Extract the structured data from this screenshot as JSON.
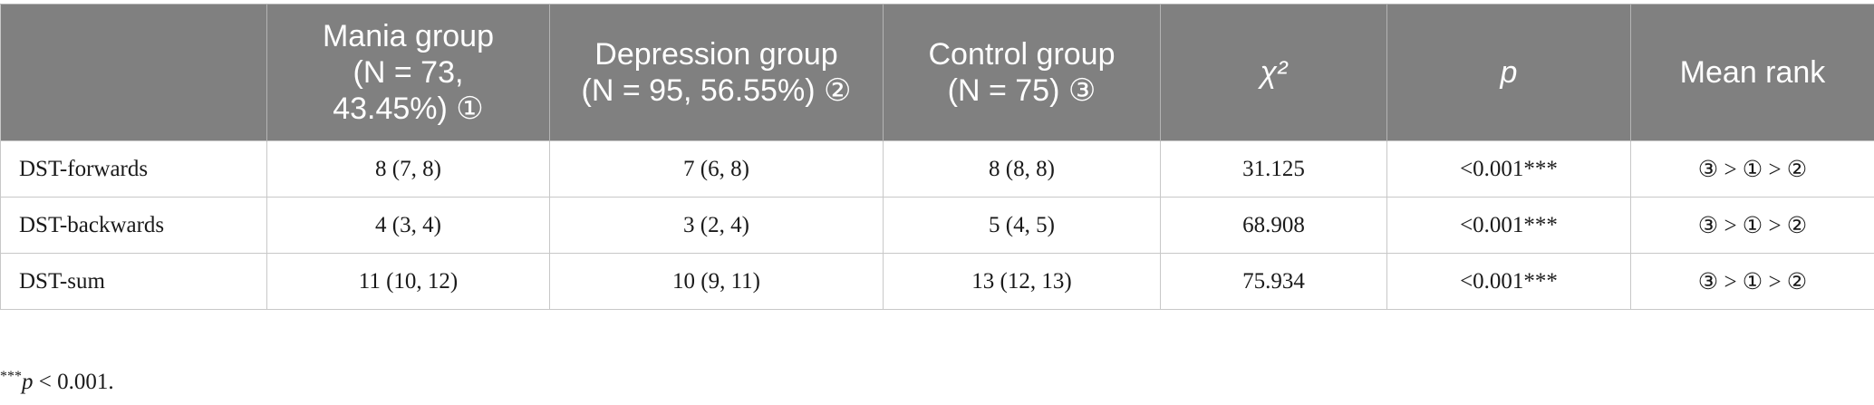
{
  "table": {
    "headers": {
      "row_label": "",
      "mania": {
        "line1": "Mania group",
        "line2": "(N = 73,",
        "line3": "43.45%) ①"
      },
      "depression": {
        "line1": "Depression group",
        "line2": "(N = 95, 56.55%) ②"
      },
      "control": {
        "line1": "Control group",
        "line2": "(N = 75) ③"
      },
      "chi2": "χ²",
      "p": "p",
      "mean_rank": "Mean rank"
    },
    "rows": [
      {
        "label": "DST-forwards",
        "mania": "8 (7, 8)",
        "depression": "7 (6, 8)",
        "control": "8 (8, 8)",
        "chi2": "31.125",
        "p": "<0.001***",
        "mean_rank": "③ > ① > ②"
      },
      {
        "label": "DST-backwards",
        "mania": "4 (3, 4)",
        "depression": "3 (2, 4)",
        "control": "5 (4, 5)",
        "chi2": "68.908",
        "p": "<0.001***",
        "mean_rank": "③ > ① > ②"
      },
      {
        "label": "DST-sum",
        "mania": "11 (10, 12)",
        "depression": "10 (9, 11)",
        "control": "13 (12, 13)",
        "chi2": "75.934",
        "p": "<0.001***",
        "mean_rank": "③ > ① > ②"
      }
    ]
  },
  "footnote": {
    "stars": "***",
    "p": "p",
    "text": " < 0.001."
  },
  "colors": {
    "header_bg": "#808080",
    "header_text": "#ffffff",
    "grid": "#c8c8c8"
  }
}
